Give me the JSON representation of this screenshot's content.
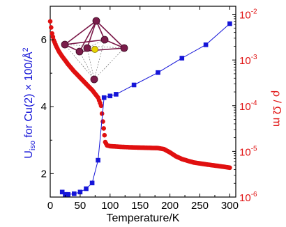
{
  "chart_data": {
    "type": "scatter",
    "title": "",
    "xlabel": "Temperature/K",
    "xlim": [
      0,
      310
    ],
    "x_ticks": [
      "0",
      "50",
      "100",
      "150",
      "200",
      "250",
      "300"
    ],
    "y_left": {
      "label_parts": {
        "before": "U",
        "sub": "iso",
        "after": " for Cu(2) × 100/Å",
        "sup": "2"
      },
      "lim": [
        1.3,
        7.0
      ],
      "ticks": [
        "2",
        "4",
        "6"
      ],
      "color": "#1515d8"
    },
    "y_right": {
      "label": "ρ / Ω m",
      "scale": "log",
      "lim": [
        1e-06,
        0.015
      ],
      "ticks": [
        {
          "base": "10",
          "exp": "-6",
          "value": 1e-06
        },
        {
          "base": "10",
          "exp": "-5",
          "value": 1e-05
        },
        {
          "base": "10",
          "exp": "-4",
          "value": 0.0001
        },
        {
          "base": "10",
          "exp": "-3",
          "value": 0.001
        },
        {
          "base": "10",
          "exp": "-2",
          "value": 0.01
        }
      ],
      "color": "#e01010"
    },
    "series": [
      {
        "axis": "left",
        "marker": "square",
        "line": true,
        "color": "#1515d8",
        "x": [
          20,
          25,
          30,
          40,
          50,
          60,
          70,
          80,
          90,
          100,
          110,
          140,
          180,
          220,
          260,
          300
        ],
        "y": [
          1.45,
          1.38,
          1.38,
          1.4,
          1.45,
          1.55,
          1.72,
          2.4,
          4.27,
          4.32,
          4.37,
          4.65,
          5.02,
          5.45,
          5.85,
          6.48
        ]
      },
      {
        "axis": "right",
        "marker": "circle",
        "line": false,
        "color": "#e01010",
        "points": [
          [
            0,
            0.007
          ],
          [
            3,
            0.0038
          ],
          [
            6,
            0.0027
          ],
          [
            10,
            0.002
          ],
          [
            15,
            0.0015
          ],
          [
            20,
            0.0012
          ],
          [
            30,
            0.0008
          ],
          [
            40,
            0.00056
          ],
          [
            50,
            0.00041
          ],
          [
            60,
            0.0003
          ],
          [
            70,
            0.00022
          ],
          [
            80,
            0.00015
          ],
          [
            85,
            0.0001
          ],
          [
            88,
            4.5e-05
          ],
          [
            92,
            1.6e-05
          ],
          [
            95,
            1.35e-05
          ],
          [
            100,
            1.3e-05
          ],
          [
            120,
            1.25e-05
          ],
          [
            140,
            1.22e-05
          ],
          [
            160,
            1.2e-05
          ],
          [
            180,
            1.18e-05
          ],
          [
            190,
            1.12e-05
          ],
          [
            200,
            9.5e-06
          ],
          [
            210,
            7.8e-06
          ],
          [
            220,
            6.8e-06
          ],
          [
            230,
            6.2e-06
          ],
          [
            240,
            5.7e-06
          ],
          [
            260,
            5.2e-06
          ],
          [
            280,
            4.8e-06
          ],
          [
            300,
            4.4e-06
          ]
        ]
      }
    ],
    "inset": "octahedron-structure-icon"
  }
}
